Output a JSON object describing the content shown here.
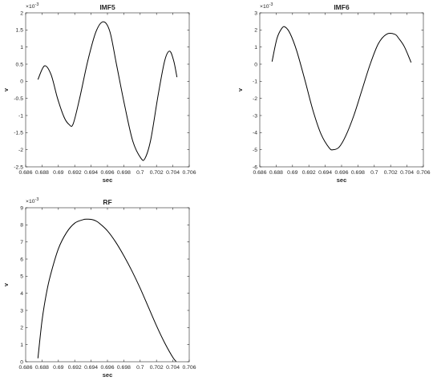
{
  "chart_data": [
    {
      "type": "line",
      "title": "IMF5",
      "xlabel": "sec",
      "ylabel": "v",
      "exponent_label": "10",
      "exponent_power": "-3",
      "xlim": [
        0.686,
        0.706
      ],
      "ylim": [
        -2.5,
        2
      ],
      "xticks": [
        0.686,
        0.688,
        0.69,
        0.692,
        0.694,
        0.696,
        0.698,
        0.7,
        0.702,
        0.704,
        0.706
      ],
      "xtick_labels": [
        "0.686",
        "0.688",
        "0.69",
        "0.692",
        "0.694",
        "0.696",
        "0.698",
        "0.7",
        "0.702",
        "0.704",
        "0.706"
      ],
      "yticks": [
        -2.5,
        -2,
        -1.5,
        -1,
        -0.5,
        0,
        0.5,
        1,
        1.5,
        2
      ],
      "ytick_labels": [
        "-2.5",
        "-2",
        "-1.5",
        "-1",
        "-0.5",
        "0",
        "0.5",
        "1",
        "1.5",
        "2"
      ],
      "grid": false,
      "line_color": "#000000",
      "series": [
        {
          "x": [
            0.6875,
            0.6883,
            0.6891,
            0.6899,
            0.6907,
            0.6913,
            0.6918,
            0.6926,
            0.6936,
            0.6946,
            0.6955,
            0.6963,
            0.6971,
            0.6981,
            0.6991,
            0.7001,
            0.7006,
            0.7013,
            0.7022,
            0.703,
            0.7036,
            0.7041,
            0.7045
          ],
          "y": [
            0.05,
            0.45,
            0.2,
            -0.5,
            -1.05,
            -1.26,
            -1.25,
            -0.5,
            0.6,
            1.45,
            1.74,
            1.45,
            0.5,
            -0.7,
            -1.75,
            -2.25,
            -2.25,
            -1.7,
            -0.4,
            0.6,
            0.88,
            0.6,
            0.12
          ]
        }
      ]
    },
    {
      "type": "line",
      "title": "IMF6",
      "xlabel": "sec",
      "ylabel": "v",
      "exponent_label": "10",
      "exponent_power": "-3",
      "xlim": [
        0.686,
        0.706
      ],
      "ylim": [
        -6,
        3
      ],
      "xticks": [
        0.686,
        0.688,
        0.69,
        0.692,
        0.694,
        0.696,
        0.698,
        0.7,
        0.702,
        0.704,
        0.706
      ],
      "xtick_labels": [
        "0.686",
        "0.688",
        "0.69",
        "0.692",
        "0.694",
        "0.696",
        "0.698",
        "0.7",
        "0.702",
        "0.704",
        "0.706"
      ],
      "yticks": [
        -6,
        -5,
        -4,
        -3,
        -2,
        -1,
        0,
        1,
        2,
        3
      ],
      "ytick_labels": [
        "-6",
        "-5",
        "-4",
        "-3",
        "-2",
        "-1",
        "0",
        "1",
        "2",
        "3"
      ],
      "grid": false,
      "line_color": "#000000",
      "series": [
        {
          "x": [
            0.6875,
            0.6881,
            0.6887,
            0.6891,
            0.6897,
            0.6905,
            0.6915,
            0.6925,
            0.6935,
            0.6945,
            0.695,
            0.6957,
            0.6965,
            0.6975,
            0.6985,
            0.6995,
            0.7005,
            0.7015,
            0.7025,
            0.703,
            0.7037,
            0.7045
          ],
          "y": [
            0.15,
            1.5,
            2.1,
            2.17,
            1.8,
            0.8,
            -0.9,
            -2.7,
            -4.1,
            -4.9,
            -5.0,
            -4.85,
            -4.2,
            -3.0,
            -1.5,
            0.0,
            1.2,
            1.75,
            1.75,
            1.5,
            1.0,
            0.1
          ]
        }
      ]
    },
    {
      "type": "line",
      "title": "RF",
      "xlabel": "sec",
      "ylabel": "v",
      "exponent_label": "10",
      "exponent_power": "-3",
      "xlim": [
        0.686,
        0.706
      ],
      "ylim": [
        0,
        9
      ],
      "xticks": [
        0.686,
        0.688,
        0.69,
        0.692,
        0.694,
        0.696,
        0.698,
        0.7,
        0.702,
        0.704,
        0.706
      ],
      "xtick_labels": [
        "0.686",
        "0.688",
        "0.69",
        "0.692",
        "0.694",
        "0.696",
        "0.698",
        "0.7",
        "0.702",
        "0.704",
        "0.706"
      ],
      "yticks": [
        0,
        1,
        2,
        3,
        4,
        5,
        6,
        7,
        8,
        9
      ],
      "ytick_labels": [
        "0",
        "1",
        "2",
        "3",
        "4",
        "5",
        "6",
        "7",
        "8",
        "9"
      ],
      "grid": false,
      "line_color": "#000000",
      "series": [
        {
          "x": [
            0.6875,
            0.688,
            0.6885,
            0.689,
            0.69,
            0.691,
            0.692,
            0.693,
            0.6935,
            0.694,
            0.6945,
            0.695,
            0.696,
            0.697,
            0.698,
            0.699,
            0.7,
            0.701,
            0.702,
            0.703,
            0.704,
            0.7044
          ],
          "y": [
            0.2,
            2.4,
            3.9,
            5.0,
            6.6,
            7.55,
            8.1,
            8.3,
            8.33,
            8.32,
            8.25,
            8.1,
            7.65,
            7.0,
            6.2,
            5.3,
            4.3,
            3.2,
            2.1,
            1.1,
            0.25,
            0.02
          ]
        }
      ]
    }
  ]
}
